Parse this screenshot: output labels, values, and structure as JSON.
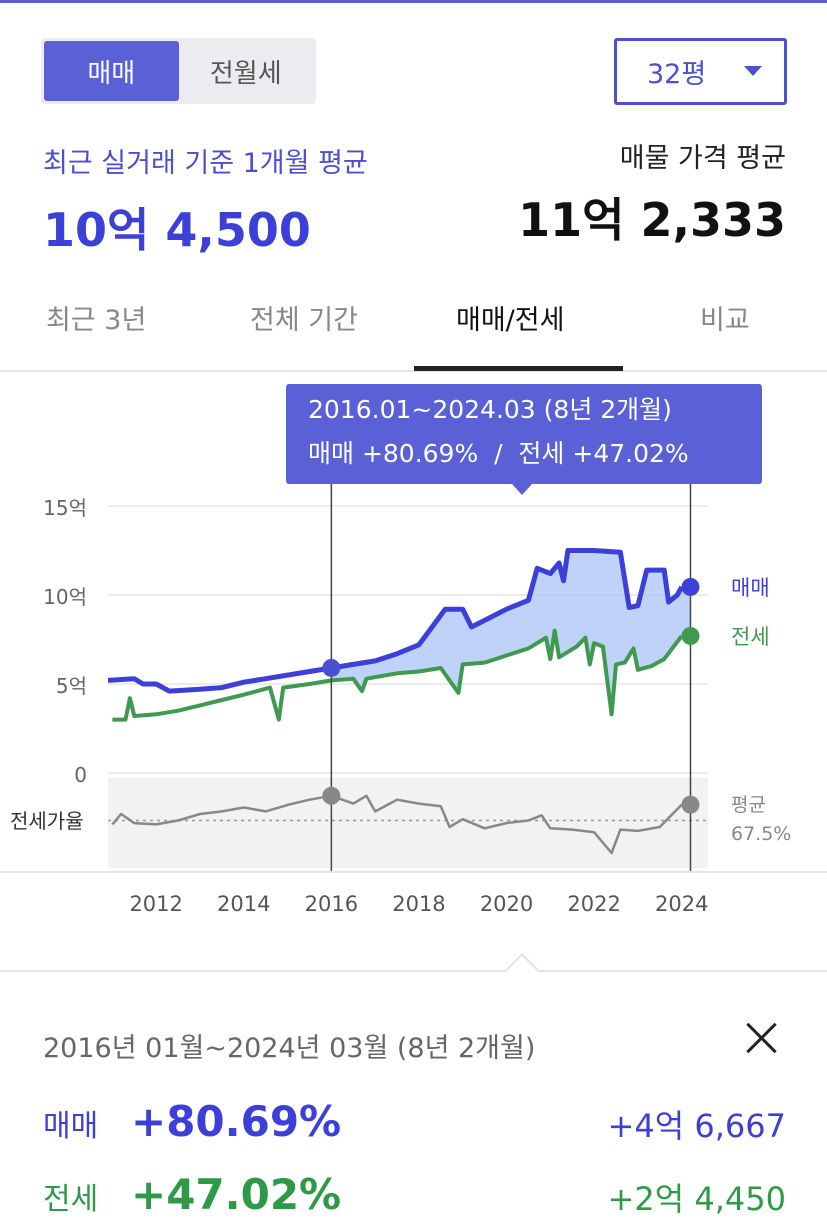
{
  "deal_toggle": {
    "sale": "매매",
    "rent": "전월세"
  },
  "size_select": {
    "value": "32평"
  },
  "recent": {
    "label": "최근 실거래 기준 1개월 평균",
    "price": "10억 4,500"
  },
  "listing": {
    "label": "매물 가격 평균",
    "price": "11억 2,333"
  },
  "tabs": [
    "최근 3년",
    "전체 기간",
    "매매/전세",
    "비교"
  ],
  "tooltip": {
    "range": "2016.01~2024.03 (8년 2개월)",
    "summary": "매매 +80.69%  /  전세 +47.02%"
  },
  "colors": {
    "sale": "#3d3fd9",
    "jeonse": "#3f9a4f",
    "ratio": "#888888",
    "accent": "#5a61d6"
  },
  "chart_data": {
    "type": "line",
    "y_ticks": [
      "15억",
      "10억",
      "5억",
      "0"
    ],
    "x_ticks": [
      "2012",
      "2014",
      "2016",
      "2018",
      "2020",
      "2022",
      "2024"
    ],
    "ylim": [
      0,
      15
    ],
    "xlim": [
      2010.9,
      2024.6
    ],
    "series": [
      {
        "name": "매매",
        "unit": "억",
        "points": [
          [
            2010.9,
            5.2
          ],
          [
            2011.5,
            5.3
          ],
          [
            2011.7,
            5.0
          ],
          [
            2012.0,
            5.0
          ],
          [
            2012.3,
            4.6
          ],
          [
            2013.0,
            4.7
          ],
          [
            2013.5,
            4.8
          ],
          [
            2014.0,
            5.1
          ],
          [
            2014.5,
            5.3
          ],
          [
            2015.0,
            5.5
          ],
          [
            2015.5,
            5.7
          ],
          [
            2016.0,
            5.9
          ],
          [
            2016.5,
            6.1
          ],
          [
            2017.0,
            6.3
          ],
          [
            2017.5,
            6.7
          ],
          [
            2018.0,
            7.2
          ],
          [
            2018.3,
            8.2
          ],
          [
            2018.6,
            9.2
          ],
          [
            2019.0,
            9.2
          ],
          [
            2019.2,
            8.2
          ],
          [
            2019.6,
            8.7
          ],
          [
            2020.0,
            9.2
          ],
          [
            2020.5,
            9.7
          ],
          [
            2020.7,
            11.5
          ],
          [
            2021.0,
            11.2
          ],
          [
            2021.2,
            11.8
          ],
          [
            2021.3,
            10.8
          ],
          [
            2021.4,
            12.5
          ],
          [
            2022.0,
            12.5
          ],
          [
            2022.6,
            12.4
          ],
          [
            2022.8,
            9.3
          ],
          [
            2023.0,
            9.4
          ],
          [
            2023.2,
            11.4
          ],
          [
            2023.6,
            11.4
          ],
          [
            2023.7,
            9.6
          ],
          [
            2023.9,
            10.0
          ],
          [
            2024.0,
            10.45
          ]
        ]
      },
      {
        "name": "전세",
        "unit": "억",
        "points": [
          [
            2011.0,
            3.0
          ],
          [
            2011.3,
            3.0
          ],
          [
            2011.4,
            4.2
          ],
          [
            2011.5,
            3.2
          ],
          [
            2012.0,
            3.3
          ],
          [
            2012.5,
            3.5
          ],
          [
            2013.0,
            3.8
          ],
          [
            2013.5,
            4.1
          ],
          [
            2014.0,
            4.4
          ],
          [
            2014.6,
            4.8
          ],
          [
            2014.8,
            3.0
          ],
          [
            2014.9,
            4.8
          ],
          [
            2015.5,
            5.0
          ],
          [
            2016.0,
            5.2
          ],
          [
            2016.5,
            5.3
          ],
          [
            2016.7,
            4.6
          ],
          [
            2016.8,
            5.3
          ],
          [
            2017.5,
            5.6
          ],
          [
            2018.0,
            5.7
          ],
          [
            2018.5,
            5.9
          ],
          [
            2018.9,
            4.5
          ],
          [
            2019.0,
            6.1
          ],
          [
            2019.5,
            6.2
          ],
          [
            2020.0,
            6.6
          ],
          [
            2020.5,
            7.0
          ],
          [
            2020.9,
            7.6
          ],
          [
            2021.0,
            6.4
          ],
          [
            2021.1,
            8.0
          ],
          [
            2021.2,
            6.5
          ],
          [
            2021.6,
            7.1
          ],
          [
            2021.8,
            7.6
          ],
          [
            2021.9,
            6.1
          ],
          [
            2022.0,
            7.3
          ],
          [
            2022.2,
            7.1
          ],
          [
            2022.4,
            3.3
          ],
          [
            2022.5,
            6.1
          ],
          [
            2022.7,
            6.2
          ],
          [
            2022.9,
            7.0
          ],
          [
            2023.0,
            5.8
          ],
          [
            2023.3,
            6.0
          ],
          [
            2023.6,
            6.4
          ],
          [
            2024.0,
            7.7
          ]
        ]
      },
      {
        "name": "전세가율",
        "unit": "%",
        "points": [
          [
            2011.0,
            66.0
          ],
          [
            2011.2,
            70.0
          ],
          [
            2011.5,
            66.5
          ],
          [
            2012.0,
            66.0
          ],
          [
            2012.5,
            67.5
          ],
          [
            2013.0,
            70.0
          ],
          [
            2013.5,
            71.0
          ],
          [
            2014.0,
            72.5
          ],
          [
            2014.5,
            71.0
          ],
          [
            2015.0,
            73.5
          ],
          [
            2015.5,
            75.5
          ],
          [
            2016.0,
            77.0
          ],
          [
            2016.5,
            74.0
          ],
          [
            2016.8,
            77.0
          ],
          [
            2017.0,
            71.0
          ],
          [
            2017.5,
            75.5
          ],
          [
            2018.0,
            74.0
          ],
          [
            2018.5,
            73.0
          ],
          [
            2018.7,
            65.0
          ],
          [
            2019.0,
            68.0
          ],
          [
            2019.5,
            64.5
          ],
          [
            2020.0,
            66.5
          ],
          [
            2020.5,
            67.5
          ],
          [
            2020.8,
            69.5
          ],
          [
            2021.0,
            64.5
          ],
          [
            2021.5,
            64.0
          ],
          [
            2022.0,
            63.0
          ],
          [
            2022.4,
            55.0
          ],
          [
            2022.6,
            64.0
          ],
          [
            2023.0,
            63.5
          ],
          [
            2023.5,
            65.0
          ],
          [
            2024.0,
            73.6
          ]
        ]
      }
    ],
    "average_line": {
      "label": "평균",
      "value_label": "67.5%",
      "value": 67.5
    },
    "range_markers": {
      "start": 2016.0,
      "end": 2024.2
    }
  },
  "detail": {
    "period": "2016년 01월~2024년 03월 (8년 2개월)",
    "sale": {
      "label": "매매",
      "pct": "+80.69%",
      "amount": "+4억 6,667"
    },
    "jeonse": {
      "label": "전세",
      "pct": "+47.02%",
      "amount": "+2억 4,450"
    }
  }
}
